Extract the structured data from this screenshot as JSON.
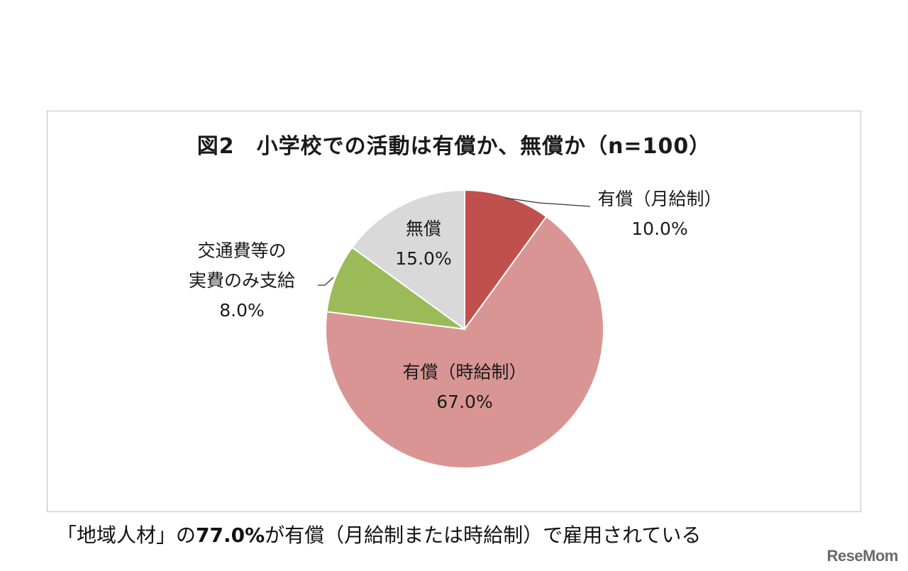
{
  "chart_data": {
    "type": "pie",
    "title": "図2　小学校での活動は有償か、無償か（n=100）",
    "start_angle_deg": 0,
    "direction": "clockwise",
    "slices": [
      {
        "label_lines": [
          "有償（月給制）"
        ],
        "value": 10.0,
        "value_label": "10.0%",
        "color": "#c0504d"
      },
      {
        "label_lines": [
          "有償（時給制）"
        ],
        "value": 67.0,
        "value_label": "67.0%",
        "color": "#d99594"
      },
      {
        "label_lines": [
          "交通費等の",
          "実費のみ支給"
        ],
        "value": 8.0,
        "value_label": "8.0%",
        "color": "#9bbb59"
      },
      {
        "label_lines": [
          "無償"
        ],
        "value": 15.0,
        "value_label": "15.0%",
        "color": "#d9d9d9"
      }
    ]
  },
  "caption": {
    "prefix": "「地域人材」の",
    "highlight": "77.0%",
    "suffix": "が有償（月給制または時給制）で雇用されている"
  },
  "logo": {
    "text": "ReseMom"
  }
}
